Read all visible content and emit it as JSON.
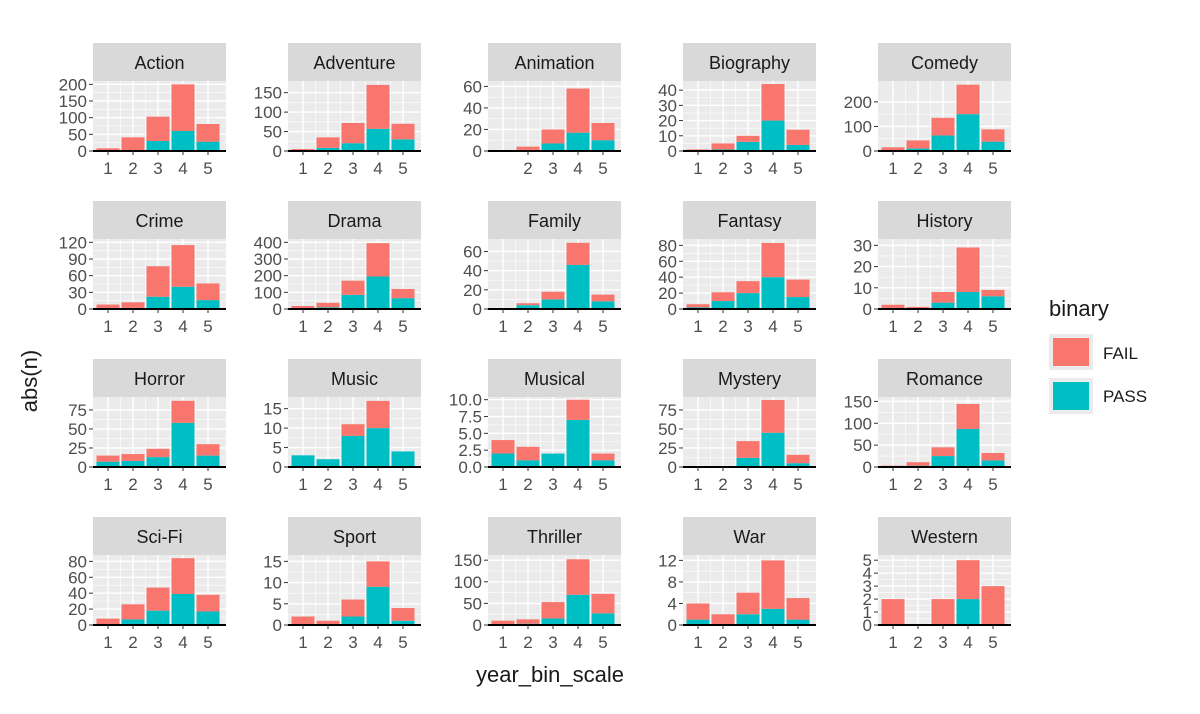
{
  "chart_data": {
    "type": "bar",
    "stacked": true,
    "facet_layout": "5 columns x 4 rows",
    "xlabel": "year_bin_scale",
    "ylabel": "abs(n)",
    "legend": {
      "title": "binary",
      "position": "right",
      "entries": [
        {
          "label": "FAIL",
          "color": "#F8766D"
        },
        {
          "label": "PASS",
          "color": "#00BFC4"
        }
      ]
    },
    "colors": {
      "FAIL": "#F8766D",
      "PASS": "#00BFC4",
      "panel_bg": "#EBEBEB",
      "strip_bg": "#D9D9D9"
    },
    "grid": true,
    "panels": [
      {
        "title": "Action",
        "x_ticks": [
          "1",
          "2",
          "3",
          "4",
          "5"
        ],
        "y_ticks": [
          "0",
          "50",
          "100",
          "150",
          "200"
        ],
        "ylim": [
          0,
          210
        ],
        "bars": [
          {
            "x": "1",
            "pass": 1,
            "fail": 7
          },
          {
            "x": "2",
            "pass": 2,
            "fail": 39
          },
          {
            "x": "3",
            "pass": 30,
            "fail": 73
          },
          {
            "x": "4",
            "pass": 60,
            "fail": 140
          },
          {
            "x": "5",
            "pass": 28,
            "fail": 53
          }
        ]
      },
      {
        "title": "Adventure",
        "x_ticks": [
          "1",
          "2",
          "3",
          "4",
          "5"
        ],
        "y_ticks": [
          "0",
          "50",
          "100",
          "150"
        ],
        "ylim": [
          0,
          180
        ],
        "bars": [
          {
            "x": "1",
            "pass": 1,
            "fail": 4
          },
          {
            "x": "2",
            "pass": 8,
            "fail": 27
          },
          {
            "x": "3",
            "pass": 20,
            "fail": 52
          },
          {
            "x": "4",
            "pass": 57,
            "fail": 113
          },
          {
            "x": "5",
            "pass": 30,
            "fail": 40
          }
        ]
      },
      {
        "title": "Animation",
        "x_ticks": [
          "2",
          "3",
          "4",
          "5"
        ],
        "y_ticks": [
          "0",
          "20",
          "40",
          "60"
        ],
        "ylim": [
          0,
          65
        ],
        "bars": [
          {
            "x": "2",
            "pass": 1,
            "fail": 3
          },
          {
            "x": "3",
            "pass": 7,
            "fail": 13
          },
          {
            "x": "4",
            "pass": 17,
            "fail": 41
          },
          {
            "x": "5",
            "pass": 10,
            "fail": 16
          }
        ]
      },
      {
        "title": "Biography",
        "x_ticks": [
          "1",
          "2",
          "3",
          "4",
          "5"
        ],
        "y_ticks": [
          "0",
          "10",
          "20",
          "30",
          "40"
        ],
        "ylim": [
          0,
          46
        ],
        "bars": [
          {
            "x": "1",
            "pass": 0,
            "fail": 1
          },
          {
            "x": "2",
            "pass": 1,
            "fail": 4
          },
          {
            "x": "3",
            "pass": 6,
            "fail": 4
          },
          {
            "x": "4",
            "pass": 20,
            "fail": 24
          },
          {
            "x": "5",
            "pass": 4,
            "fail": 10
          }
        ]
      },
      {
        "title": "Comedy",
        "x_ticks": [
          "1",
          "2",
          "3",
          "4",
          "5"
        ],
        "y_ticks": [
          "0",
          "100",
          "200"
        ],
        "ylim": [
          0,
          285
        ],
        "bars": [
          {
            "x": "1",
            "pass": 3,
            "fail": 12
          },
          {
            "x": "2",
            "pass": 10,
            "fail": 33
          },
          {
            "x": "3",
            "pass": 63,
            "fail": 72
          },
          {
            "x": "4",
            "pass": 150,
            "fail": 120
          },
          {
            "x": "5",
            "pass": 38,
            "fail": 50
          }
        ]
      },
      {
        "title": "Crime",
        "x_ticks": [
          "1",
          "2",
          "3",
          "4",
          "5"
        ],
        "y_ticks": [
          "0",
          "30",
          "60",
          "90",
          "120"
        ],
        "ylim": [
          0,
          126
        ],
        "bars": [
          {
            "x": "1",
            "pass": 1,
            "fail": 7
          },
          {
            "x": "2",
            "pass": 2,
            "fail": 10
          },
          {
            "x": "3",
            "pass": 22,
            "fail": 55
          },
          {
            "x": "4",
            "pass": 40,
            "fail": 75
          },
          {
            "x": "5",
            "pass": 16,
            "fail": 30
          }
        ]
      },
      {
        "title": "Drama",
        "x_ticks": [
          "1",
          "2",
          "3",
          "4",
          "5"
        ],
        "y_ticks": [
          "0",
          "100",
          "200",
          "300",
          "400"
        ],
        "ylim": [
          0,
          420
        ],
        "bars": [
          {
            "x": "1",
            "pass": 3,
            "fail": 15
          },
          {
            "x": "2",
            "pass": 10,
            "fail": 27
          },
          {
            "x": "3",
            "pass": 85,
            "fail": 85
          },
          {
            "x": "4",
            "pass": 195,
            "fail": 200
          },
          {
            "x": "5",
            "pass": 65,
            "fail": 55
          }
        ]
      },
      {
        "title": "Family",
        "x_ticks": [
          "1",
          "2",
          "3",
          "4",
          "5"
        ],
        "y_ticks": [
          "0",
          "20",
          "40",
          "60"
        ],
        "ylim": [
          0,
          73
        ],
        "bars": [
          {
            "x": "1",
            "pass": 0,
            "fail": 1
          },
          {
            "x": "2",
            "pass": 4,
            "fail": 2
          },
          {
            "x": "3",
            "pass": 10,
            "fail": 8
          },
          {
            "x": "4",
            "pass": 46,
            "fail": 23
          },
          {
            "x": "5",
            "pass": 8,
            "fail": 7
          }
        ]
      },
      {
        "title": "Fantasy",
        "x_ticks": [
          "1",
          "2",
          "3",
          "4",
          "5"
        ],
        "y_ticks": [
          "0",
          "20",
          "40",
          "60",
          "80"
        ],
        "ylim": [
          0,
          88
        ],
        "bars": [
          {
            "x": "1",
            "pass": 2,
            "fail": 4
          },
          {
            "x": "2",
            "pass": 10,
            "fail": 11
          },
          {
            "x": "3",
            "pass": 20,
            "fail": 15
          },
          {
            "x": "4",
            "pass": 40,
            "fail": 43
          },
          {
            "x": "5",
            "pass": 15,
            "fail": 22
          }
        ]
      },
      {
        "title": "History",
        "x_ticks": [
          "1",
          "2",
          "3",
          "4",
          "5"
        ],
        "y_ticks": [
          "0",
          "10",
          "20",
          "30"
        ],
        "ylim": [
          0,
          33
        ],
        "bars": [
          {
            "x": "1",
            "pass": 0,
            "fail": 2
          },
          {
            "x": "2",
            "pass": 0,
            "fail": 1
          },
          {
            "x": "3",
            "pass": 3,
            "fail": 5
          },
          {
            "x": "4",
            "pass": 8,
            "fail": 21
          },
          {
            "x": "5",
            "pass": 6,
            "fail": 3
          }
        ]
      },
      {
        "title": "Horror",
        "x_ticks": [
          "1",
          "2",
          "3",
          "4",
          "5"
        ],
        "y_ticks": [
          "0",
          "25",
          "50",
          "75"
        ],
        "ylim": [
          0,
          92
        ],
        "bars": [
          {
            "x": "1",
            "pass": 7,
            "fail": 8
          },
          {
            "x": "2",
            "pass": 8,
            "fail": 9
          },
          {
            "x": "3",
            "pass": 13,
            "fail": 11
          },
          {
            "x": "4",
            "pass": 58,
            "fail": 29
          },
          {
            "x": "5",
            "pass": 15,
            "fail": 15
          }
        ]
      },
      {
        "title": "Music",
        "x_ticks": [
          "1",
          "2",
          "3",
          "4",
          "5"
        ],
        "y_ticks": [
          "0",
          "5",
          "10",
          "15"
        ],
        "ylim": [
          0,
          18
        ],
        "bars": [
          {
            "x": "1",
            "pass": 3,
            "fail": 0
          },
          {
            "x": "2",
            "pass": 2,
            "fail": 0
          },
          {
            "x": "3",
            "pass": 8,
            "fail": 3
          },
          {
            "x": "4",
            "pass": 10,
            "fail": 7
          },
          {
            "x": "5",
            "pass": 4,
            "fail": 0
          }
        ]
      },
      {
        "title": "Musical",
        "x_ticks": [
          "1",
          "2",
          "3",
          "4",
          "5"
        ],
        "y_ticks": [
          "0.0",
          "2.5",
          "5.0",
          "7.5",
          "10.0"
        ],
        "ylim": [
          0,
          10.4
        ],
        "bars": [
          {
            "x": "1",
            "pass": 2,
            "fail": 2
          },
          {
            "x": "2",
            "pass": 1,
            "fail": 2
          },
          {
            "x": "3",
            "pass": 2,
            "fail": 0
          },
          {
            "x": "4",
            "pass": 7,
            "fail": 3
          },
          {
            "x": "5",
            "pass": 1,
            "fail": 1
          }
        ]
      },
      {
        "title": "Mystery",
        "x_ticks": [
          "1",
          "2",
          "3",
          "4",
          "5"
        ],
        "y_ticks": [
          "0",
          "25",
          "50",
          "75"
        ],
        "ylim": [
          0,
          92
        ],
        "bars": [
          {
            "x": "1",
            "pass": 0,
            "fail": 1
          },
          {
            "x": "2",
            "pass": 0,
            "fail": 1
          },
          {
            "x": "3",
            "pass": 12,
            "fail": 22
          },
          {
            "x": "4",
            "pass": 45,
            "fail": 43
          },
          {
            "x": "5",
            "pass": 5,
            "fail": 11
          }
        ]
      },
      {
        "title": "Romance",
        "x_ticks": [
          "1",
          "2",
          "3",
          "4",
          "5"
        ],
        "y_ticks": [
          "0",
          "50",
          "100",
          "150"
        ],
        "ylim": [
          0,
          160
        ],
        "bars": [
          {
            "x": "1",
            "pass": 1,
            "fail": 2
          },
          {
            "x": "2",
            "pass": 3,
            "fail": 8
          },
          {
            "x": "3",
            "pass": 25,
            "fail": 20
          },
          {
            "x": "4",
            "pass": 87,
            "fail": 57
          },
          {
            "x": "5",
            "pass": 15,
            "fail": 17
          }
        ]
      },
      {
        "title": "Sci-Fi",
        "x_ticks": [
          "1",
          "2",
          "3",
          "4",
          "5"
        ],
        "y_ticks": [
          "0",
          "20",
          "40",
          "60",
          "80"
        ],
        "ylim": [
          0,
          88
        ],
        "bars": [
          {
            "x": "1",
            "pass": 1,
            "fail": 7
          },
          {
            "x": "2",
            "pass": 7,
            "fail": 19
          },
          {
            "x": "3",
            "pass": 18,
            "fail": 29
          },
          {
            "x": "4",
            "pass": 39,
            "fail": 45
          },
          {
            "x": "5",
            "pass": 17,
            "fail": 21
          }
        ]
      },
      {
        "title": "Sport",
        "x_ticks": [
          "1",
          "2",
          "3",
          "4",
          "5"
        ],
        "y_ticks": [
          "0",
          "5",
          "10",
          "15"
        ],
        "ylim": [
          0,
          16.5
        ],
        "bars": [
          {
            "x": "1",
            "pass": 0,
            "fail": 2
          },
          {
            "x": "2",
            "pass": 0,
            "fail": 1
          },
          {
            "x": "3",
            "pass": 2,
            "fail": 4
          },
          {
            "x": "4",
            "pass": 9,
            "fail": 6
          },
          {
            "x": "5",
            "pass": 1,
            "fail": 3
          }
        ]
      },
      {
        "title": "Thriller",
        "x_ticks": [
          "1",
          "2",
          "3",
          "4",
          "5"
        ],
        "y_ticks": [
          "0",
          "50",
          "100",
          "150"
        ],
        "ylim": [
          0,
          162
        ],
        "bars": [
          {
            "x": "1",
            "pass": 2,
            "fail": 8
          },
          {
            "x": "2",
            "pass": 3,
            "fail": 10
          },
          {
            "x": "3",
            "pass": 15,
            "fail": 38
          },
          {
            "x": "4",
            "pass": 70,
            "fail": 82
          },
          {
            "x": "5",
            "pass": 27,
            "fail": 45
          }
        ]
      },
      {
        "title": "War",
        "x_ticks": [
          "1",
          "2",
          "3",
          "4",
          "5"
        ],
        "y_ticks": [
          "0",
          "4",
          "8",
          "12"
        ],
        "ylim": [
          0,
          13
        ],
        "bars": [
          {
            "x": "1",
            "pass": 1,
            "fail": 3
          },
          {
            "x": "2",
            "pass": 0,
            "fail": 2
          },
          {
            "x": "3",
            "pass": 2,
            "fail": 4
          },
          {
            "x": "4",
            "pass": 3,
            "fail": 9
          },
          {
            "x": "5",
            "pass": 1,
            "fail": 4
          }
        ]
      },
      {
        "title": "Western",
        "x_ticks": [
          "1",
          "2",
          "3",
          "4",
          "5"
        ],
        "y_ticks": [
          "0",
          "1",
          "2",
          "3",
          "4",
          "5"
        ],
        "ylim": [
          0,
          5.4
        ],
        "bars": [
          {
            "x": "1",
            "pass": 0,
            "fail": 2
          },
          {
            "x": "3",
            "pass": 0,
            "fail": 2
          },
          {
            "x": "4",
            "pass": 2,
            "fail": 3
          },
          {
            "x": "5",
            "pass": 0,
            "fail": 3
          }
        ]
      }
    ]
  }
}
